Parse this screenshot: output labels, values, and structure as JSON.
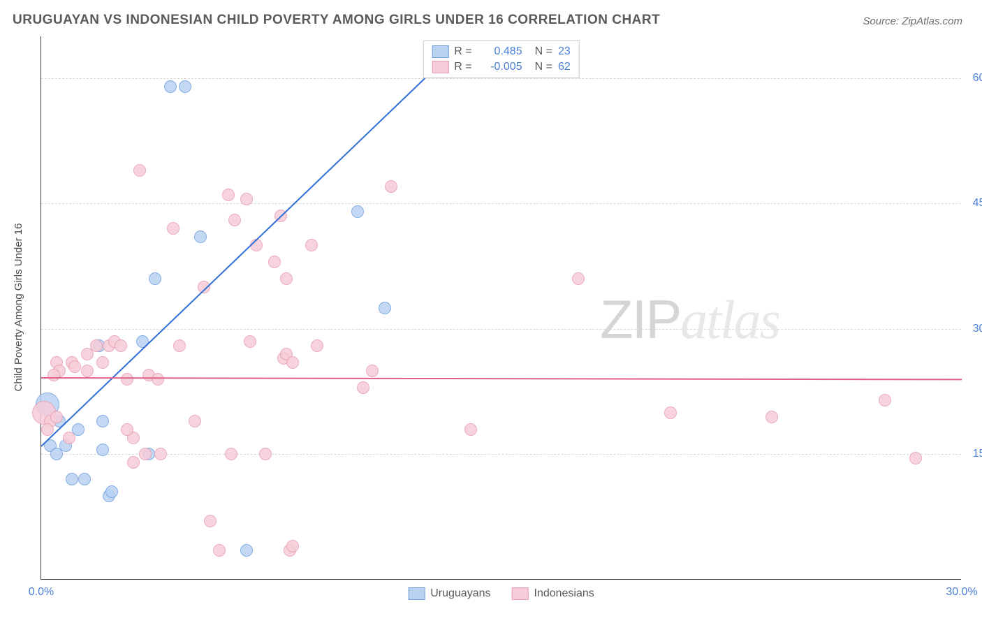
{
  "title": "URUGUAYAN VS INDONESIAN CHILD POVERTY AMONG GIRLS UNDER 16 CORRELATION CHART",
  "source": "Source: ZipAtlas.com",
  "y_axis_label": "Child Poverty Among Girls Under 16",
  "watermark": {
    "part1": "ZIP",
    "part2": "atlas"
  },
  "chart": {
    "type": "scatter",
    "background_color": "#ffffff",
    "grid_color": "#d8d8d8",
    "axis_color": "#3a3a3a",
    "xlim": [
      0,
      30
    ],
    "ylim": [
      0,
      65
    ],
    "x_ticks": [
      {
        "v": 0,
        "label": "0.0%"
      },
      {
        "v": 30,
        "label": "30.0%"
      }
    ],
    "y_ticks": [
      {
        "v": 15,
        "label": "15.0%"
      },
      {
        "v": 30,
        "label": "30.0%"
      },
      {
        "v": 45,
        "label": "45.0%"
      },
      {
        "v": 60,
        "label": "60.0%"
      }
    ],
    "point_radius": 9,
    "point_border_width": 1.5,
    "point_fill_opacity": 0.25,
    "point_big_radius": 17,
    "series": [
      {
        "name": "Uruguayans",
        "color_border": "#6f9fe0",
        "color_fill": "#b9d2f2",
        "trend": {
          "color": "#2e6fd6",
          "x1": 0,
          "y1": 16,
          "x2": 12.5,
          "y2": 60
        },
        "R_label": "R =",
        "R": "0.485",
        "N_label": "N =",
        "N": "23",
        "points": [
          {
            "x": 0.2,
            "y": 21,
            "big": true
          },
          {
            "x": 0.3,
            "y": 16
          },
          {
            "x": 0.5,
            "y": 15
          },
          {
            "x": 0.6,
            "y": 19
          },
          {
            "x": 0.8,
            "y": 16
          },
          {
            "x": 1.2,
            "y": 18
          },
          {
            "x": 1.0,
            "y": 12
          },
          {
            "x": 1.4,
            "y": 12
          },
          {
            "x": 2.0,
            "y": 19
          },
          {
            "x": 2.2,
            "y": 10
          },
          {
            "x": 2.3,
            "y": 10.5
          },
          {
            "x": 1.9,
            "y": 28
          },
          {
            "x": 3.3,
            "y": 28.5
          },
          {
            "x": 3.5,
            "y": 15
          },
          {
            "x": 2.0,
            "y": 15.5
          },
          {
            "x": 3.7,
            "y": 36
          },
          {
            "x": 4.2,
            "y": 59
          },
          {
            "x": 4.7,
            "y": 59
          },
          {
            "x": 5.2,
            "y": 41
          },
          {
            "x": 6.7,
            "y": 3.5
          },
          {
            "x": 10.3,
            "y": 44
          },
          {
            "x": 11.2,
            "y": 32.5
          }
        ]
      },
      {
        "name": "Indonesians",
        "color_border": "#e79db1",
        "color_fill": "#f6cdd8",
        "trend": {
          "color": "#e06088",
          "x1": 0,
          "y1": 24.2,
          "x2": 30,
          "y2": 24
        },
        "R_label": "R =",
        "R": "-0.005",
        "N_label": "N =",
        "N": "62",
        "points": [
          {
            "x": 0.1,
            "y": 20,
            "big": true
          },
          {
            "x": 0.3,
            "y": 19
          },
          {
            "x": 0.2,
            "y": 18
          },
          {
            "x": 0.5,
            "y": 19.5
          },
          {
            "x": 0.5,
            "y": 26
          },
          {
            "x": 0.6,
            "y": 25
          },
          {
            "x": 0.4,
            "y": 24.5
          },
          {
            "x": 0.9,
            "y": 17
          },
          {
            "x": 1.0,
            "y": 26
          },
          {
            "x": 1.1,
            "y": 25.5
          },
          {
            "x": 1.5,
            "y": 27
          },
          {
            "x": 1.5,
            "y": 25
          },
          {
            "x": 1.8,
            "y": 28
          },
          {
            "x": 2.0,
            "y": 26
          },
          {
            "x": 2.2,
            "y": 28
          },
          {
            "x": 2.4,
            "y": 28.5
          },
          {
            "x": 2.6,
            "y": 28
          },
          {
            "x": 2.8,
            "y": 24
          },
          {
            "x": 3.0,
            "y": 17
          },
          {
            "x": 2.8,
            "y": 18
          },
          {
            "x": 3.2,
            "y": 49
          },
          {
            "x": 3.5,
            "y": 24.5
          },
          {
            "x": 3.8,
            "y": 24
          },
          {
            "x": 3.0,
            "y": 14
          },
          {
            "x": 3.4,
            "y": 15
          },
          {
            "x": 3.9,
            "y": 15
          },
          {
            "x": 4.3,
            "y": 42
          },
          {
            "x": 4.5,
            "y": 28
          },
          {
            "x": 5.0,
            "y": 19
          },
          {
            "x": 5.3,
            "y": 35
          },
          {
            "x": 5.5,
            "y": 7
          },
          {
            "x": 6.1,
            "y": 46
          },
          {
            "x": 6.3,
            "y": 43
          },
          {
            "x": 6.2,
            "y": 15
          },
          {
            "x": 5.8,
            "y": 3.5
          },
          {
            "x": 6.7,
            "y": 45.5
          },
          {
            "x": 6.8,
            "y": 28.5
          },
          {
            "x": 7.0,
            "y": 40
          },
          {
            "x": 7.8,
            "y": 43.5
          },
          {
            "x": 7.6,
            "y": 38
          },
          {
            "x": 7.3,
            "y": 15
          },
          {
            "x": 7.9,
            "y": 26.5
          },
          {
            "x": 8.0,
            "y": 36
          },
          {
            "x": 8.0,
            "y": 27
          },
          {
            "x": 8.2,
            "y": 26
          },
          {
            "x": 8.1,
            "y": 3.5
          },
          {
            "x": 8.2,
            "y": 4
          },
          {
            "x": 8.8,
            "y": 40
          },
          {
            "x": 9.0,
            "y": 28
          },
          {
            "x": 10.5,
            "y": 23
          },
          {
            "x": 10.8,
            "y": 25
          },
          {
            "x": 11.4,
            "y": 47
          },
          {
            "x": 14.0,
            "y": 18
          },
          {
            "x": 17.5,
            "y": 36
          },
          {
            "x": 20.5,
            "y": 20
          },
          {
            "x": 23.8,
            "y": 19.5
          },
          {
            "x": 27.5,
            "y": 21.5
          },
          {
            "x": 28.5,
            "y": 14.5
          }
        ]
      }
    ]
  }
}
